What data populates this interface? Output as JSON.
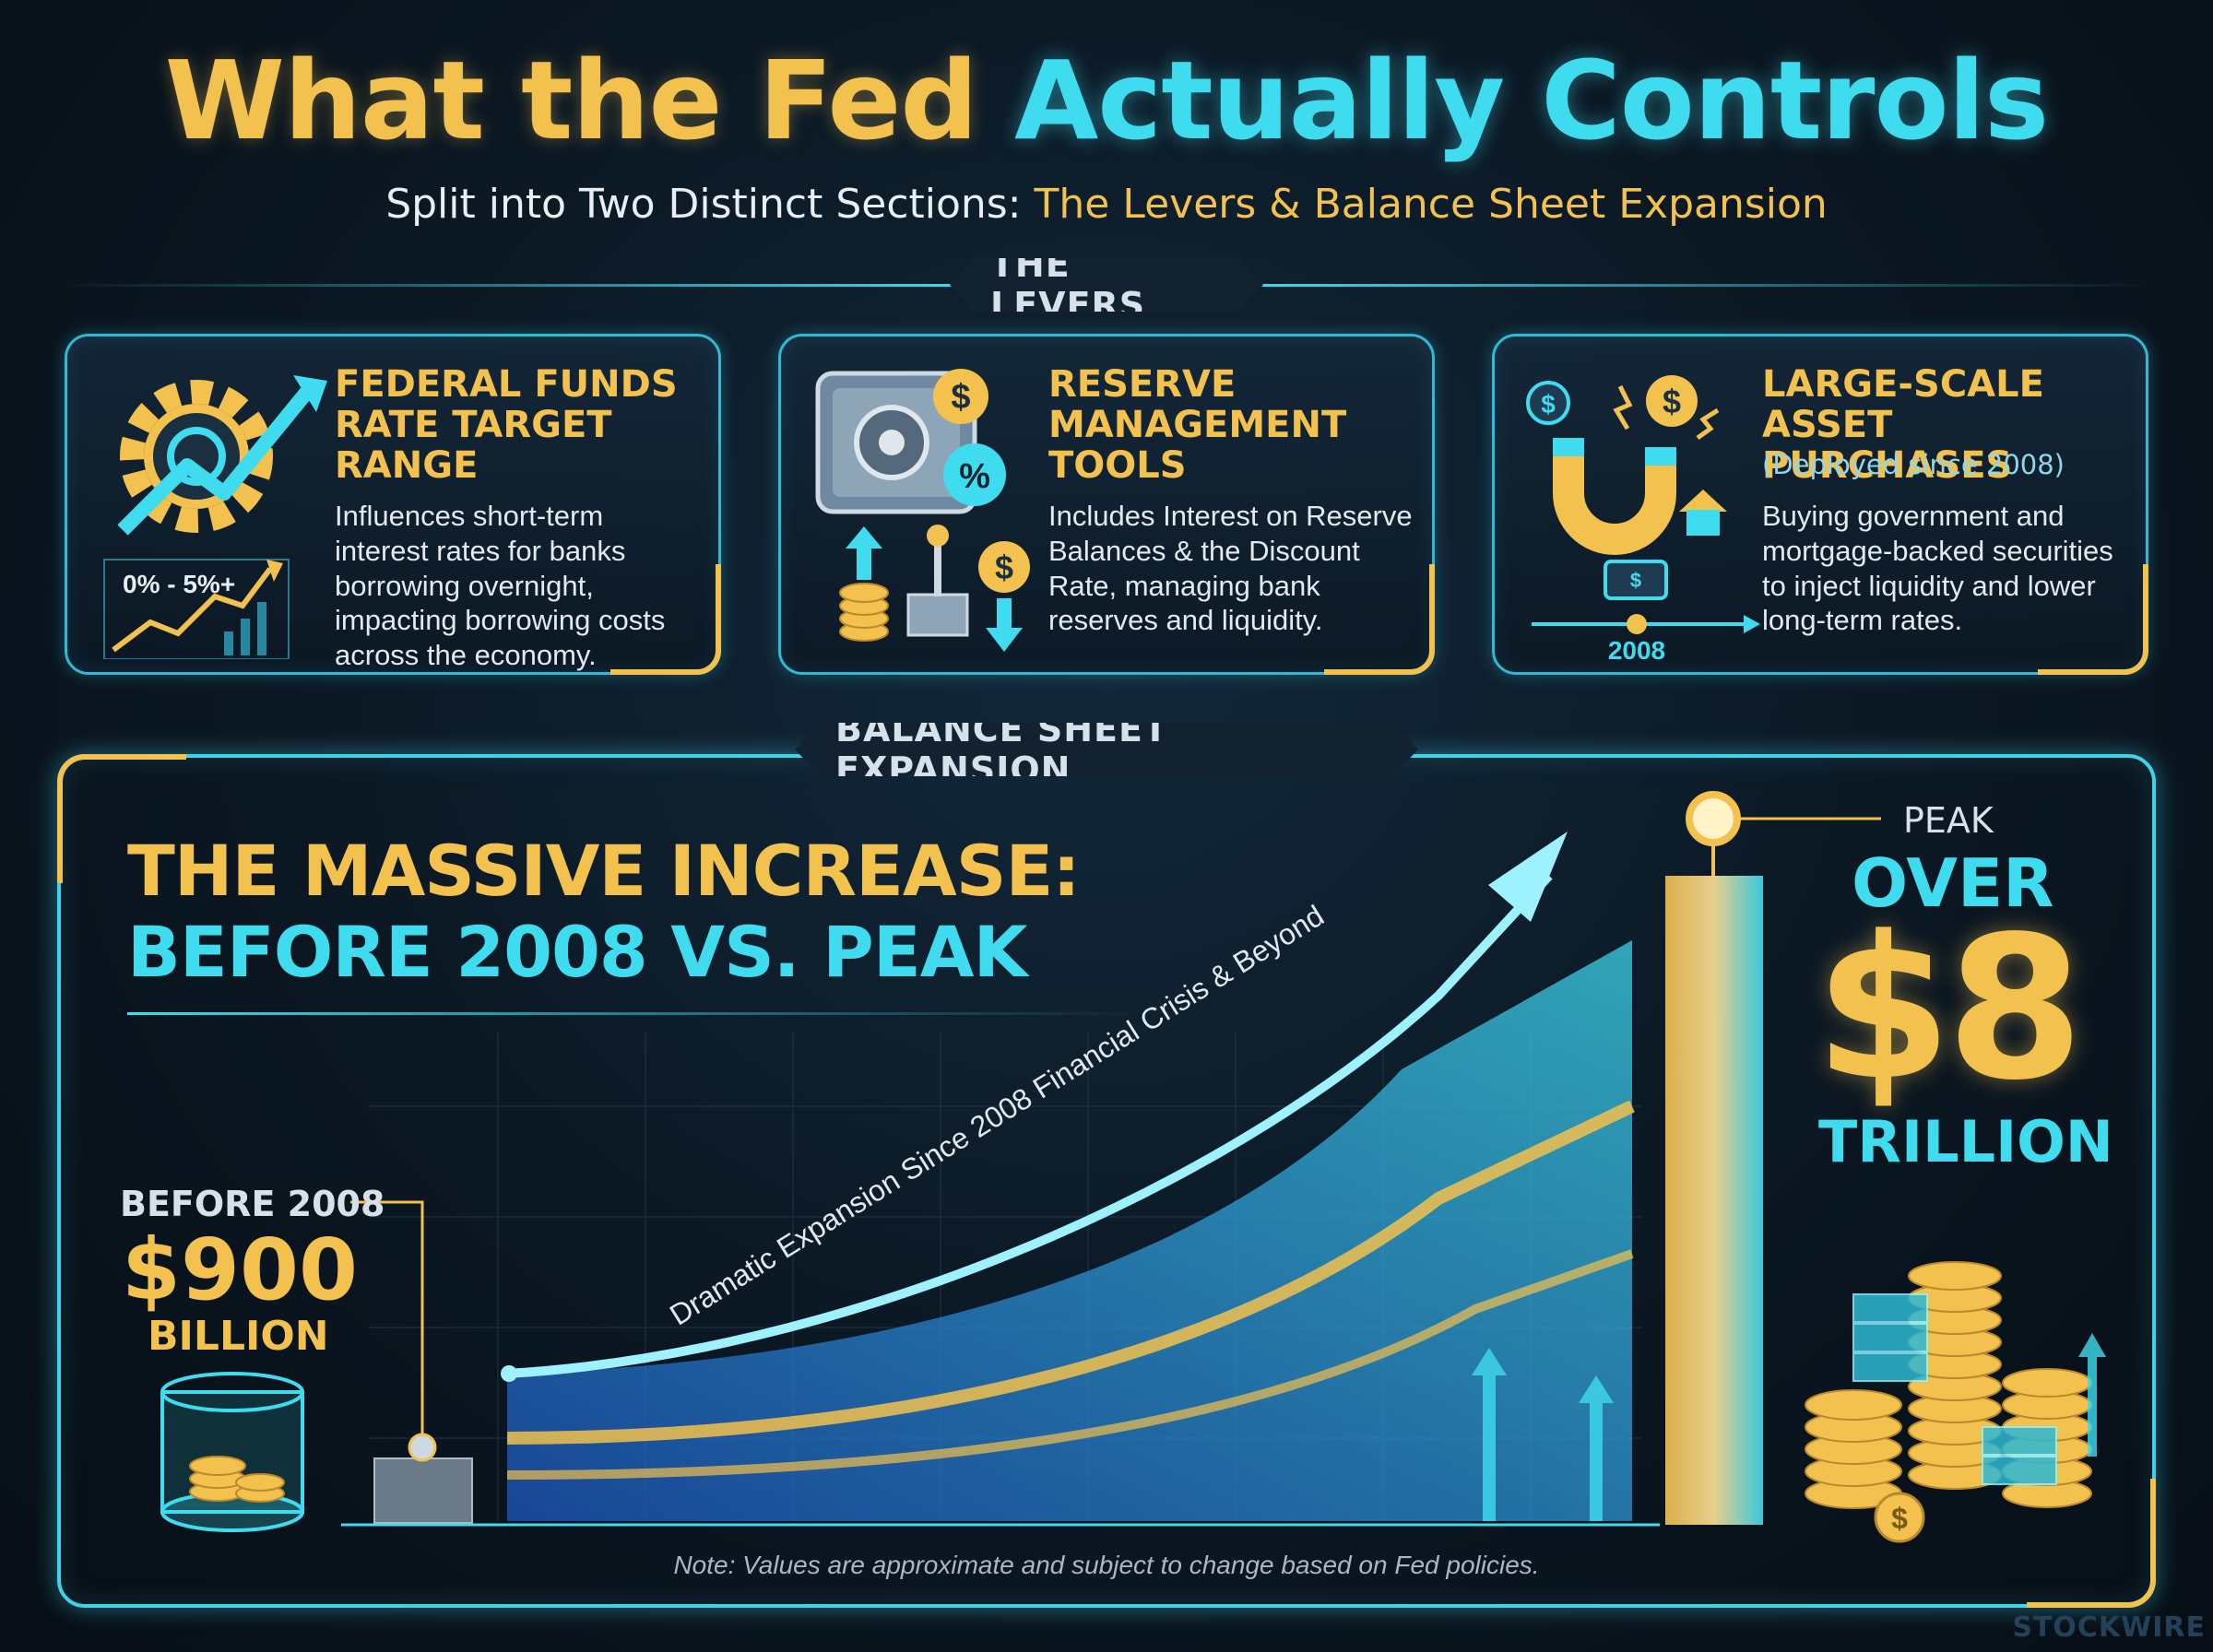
{
  "header": {
    "title_part1": "What the Fed ",
    "title_part2": "Actually Controls",
    "subtitle_part1": "Split into Two Distinct Sections: ",
    "subtitle_part2": "The Levers & Balance Sheet Expansion"
  },
  "levers": {
    "section_label": "THE LEVERS",
    "items": [
      {
        "title": "FEDERAL FUNDS RATE TARGET RANGE",
        "subtitle": "",
        "description": "Influences short-term interest rates for banks borrowing overnight, impacting borrowing costs across the economy.",
        "icon_badge": "0% - 5%+",
        "icon": "gear-chart-icon"
      },
      {
        "title": "RESERVE MANAGEMENT TOOLS",
        "subtitle": "",
        "description": "Includes Interest on Reserve Balances & the Discount Rate, managing bank reserves and liquidity.",
        "icon_badge": "",
        "icon": "vault-icon"
      },
      {
        "title": "LARGE-SCALE ASSET PURCHASES",
        "subtitle": "(Deployed since 2008)",
        "description": "Buying government and mortgage-backed securities to inject liquidity and lower long-term rates.",
        "icon_badge": "2008",
        "icon": "magnet-icon"
      }
    ]
  },
  "balance_sheet": {
    "section_label": "BALANCE SHEET EXPANSION",
    "headline_line1": "THE MASSIVE INCREASE:",
    "headline_line2": "BEFORE 2008 VS. PEAK",
    "curve_label": "Dramatic Expansion Since 2008 Financial Crisis & Beyond",
    "before": {
      "label": "BEFORE 2008",
      "value": "$900",
      "unit": "BILLION"
    },
    "peak": {
      "label": "PEAK",
      "prefix": "OVER",
      "value": "$8",
      "unit": "TRILLION"
    },
    "note": "Note: Values are approximate and subject to change based on Fed policies."
  },
  "watermark": "STOCKWIRE",
  "colors": {
    "gold": "#f2c14e",
    "cyan": "#3fdcf0",
    "background": "#0b1722"
  }
}
